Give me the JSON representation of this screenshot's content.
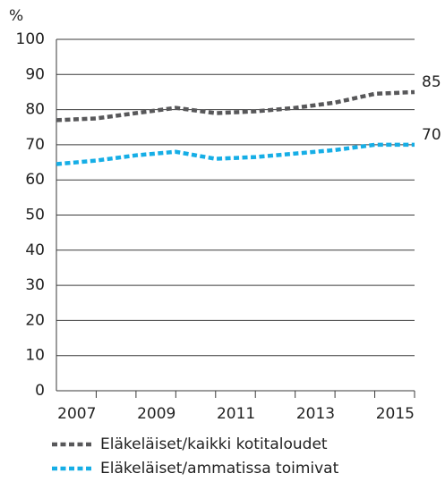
{
  "chart_data": {
    "type": "line",
    "y_label": "%",
    "x": [
      2006,
      2007,
      2008,
      2009,
      2010,
      2011,
      2012,
      2013,
      2014,
      2015
    ],
    "xlim": [
      2006,
      2015
    ],
    "xticks": [
      2007,
      2009,
      2011,
      2013,
      2015
    ],
    "minor_xticks": [
      2008,
      2010,
      2012,
      2014
    ],
    "ylim": [
      0,
      100
    ],
    "yticks": [
      0,
      10,
      20,
      30,
      40,
      50,
      60,
      70,
      80,
      90,
      100
    ],
    "grid": true,
    "series": [
      {
        "name": "Eläkeläiset/kaikki kotitaloudet",
        "color": "#58585a",
        "values": [
          77,
          77.5,
          79,
          80.5,
          79,
          79.5,
          80.5,
          82,
          84.5,
          85
        ]
      },
      {
        "name": "Eläkeläiset/ammatissa toimivat",
        "color": "#16aee6",
        "values": [
          64.5,
          65.5,
          67,
          68,
          66,
          66.5,
          67.5,
          68.5,
          70,
          70
        ]
      }
    ]
  }
}
